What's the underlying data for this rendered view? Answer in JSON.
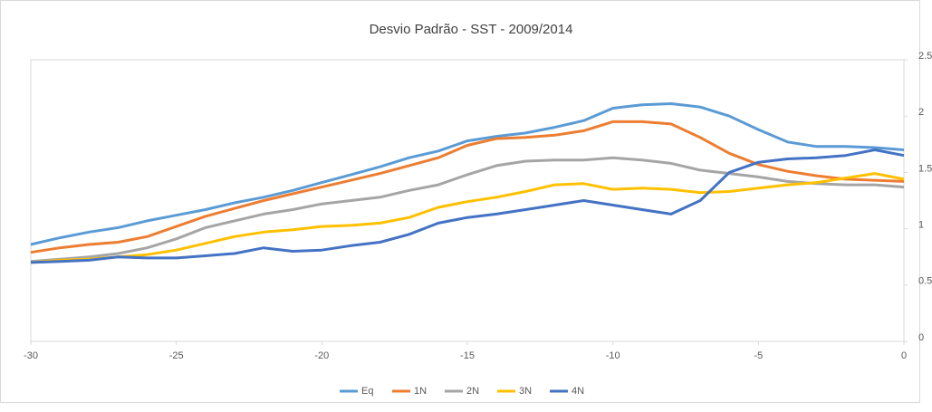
{
  "chart_data": {
    "type": "line",
    "title": "Desvio Padrão - SST - 2009/2014",
    "x": [
      -30,
      -29,
      -28,
      -27,
      -26,
      -25,
      -24,
      -23,
      -22,
      -21,
      -20,
      -19,
      -18,
      -17,
      -16,
      -15,
      -14,
      -13,
      -12,
      -11,
      -10,
      -9,
      -8,
      -7,
      -6,
      -5,
      -4,
      -3,
      -2,
      -1,
      0
    ],
    "series": [
      {
        "name": "Eq",
        "color": "#5b9bd5",
        "values": [
          0.86,
          0.92,
          0.97,
          1.01,
          1.07,
          1.12,
          1.17,
          1.23,
          1.28,
          1.34,
          1.41,
          1.48,
          1.55,
          1.63,
          1.69,
          1.78,
          1.82,
          1.85,
          1.9,
          1.96,
          2.07,
          2.1,
          2.11,
          2.08,
          2.0,
          1.88,
          1.77,
          1.73,
          1.73,
          1.72,
          1.7
        ]
      },
      {
        "name": "1N",
        "color": "#ed7d31",
        "values": [
          0.79,
          0.83,
          0.86,
          0.88,
          0.93,
          1.02,
          1.11,
          1.18,
          1.25,
          1.31,
          1.37,
          1.43,
          1.49,
          1.56,
          1.63,
          1.74,
          1.8,
          1.81,
          1.83,
          1.87,
          1.95,
          1.95,
          1.93,
          1.81,
          1.67,
          1.57,
          1.51,
          1.47,
          1.44,
          1.43,
          1.42
        ]
      },
      {
        "name": "2N",
        "color": "#a5a5a5",
        "values": [
          0.71,
          0.73,
          0.75,
          0.78,
          0.83,
          0.91,
          1.01,
          1.07,
          1.13,
          1.17,
          1.22,
          1.25,
          1.28,
          1.34,
          1.39,
          1.48,
          1.56,
          1.6,
          1.61,
          1.61,
          1.63,
          1.61,
          1.58,
          1.52,
          1.49,
          1.46,
          1.42,
          1.4,
          1.39,
          1.39,
          1.37
        ]
      },
      {
        "name": "3N",
        "color": "#ffc000",
        "values": [
          0.7,
          0.72,
          0.73,
          0.75,
          0.77,
          0.81,
          0.87,
          0.93,
          0.97,
          0.99,
          1.02,
          1.03,
          1.05,
          1.1,
          1.19,
          1.24,
          1.28,
          1.33,
          1.39,
          1.4,
          1.35,
          1.36,
          1.35,
          1.32,
          1.33,
          1.36,
          1.39,
          1.41,
          1.45,
          1.49,
          1.44
        ]
      },
      {
        "name": "4N",
        "color": "#4472c4",
        "values": [
          0.7,
          0.71,
          0.72,
          0.75,
          0.74,
          0.74,
          0.76,
          0.78,
          0.83,
          0.8,
          0.81,
          0.85,
          0.88,
          0.95,
          1.05,
          1.1,
          1.13,
          1.17,
          1.21,
          1.25,
          1.21,
          1.17,
          1.13,
          1.25,
          1.5,
          1.59,
          1.62,
          1.63,
          1.65,
          1.7,
          1.65
        ]
      }
    ],
    "xlim": [
      -30,
      0
    ],
    "xticks": [
      -30,
      -25,
      -20,
      -15,
      -10,
      -5,
      0
    ],
    "ylim": [
      0,
      2.5
    ],
    "yticks": [
      0,
      0.5,
      1,
      1.5,
      2,
      2.5
    ]
  }
}
